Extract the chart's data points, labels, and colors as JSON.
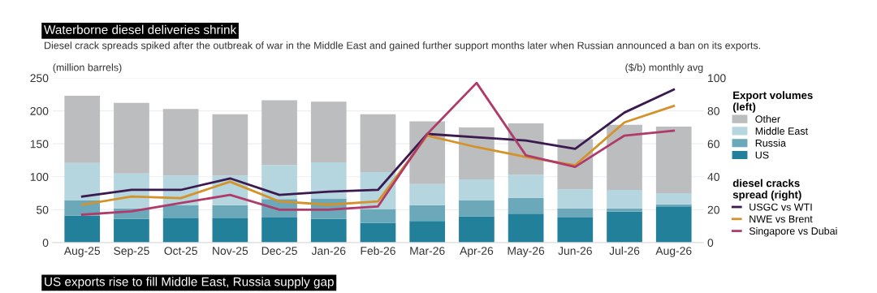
{
  "chart_data": {
    "type": "bar",
    "stacked": true,
    "title": "Waterborne diesel deliveries shrink",
    "subtitle": "Diesel crack spreads spiked after the outbreak of war in the Middle East and gained further support months later when Russian announced a ban on its exports.",
    "ylabel": "(million barrels)",
    "y2label": "($/b) monthly avg",
    "legend_title": "Export volumes\n(left)",
    "categories": [
      "Aug-25",
      "Sep-25",
      "Oct-25",
      "Nov-25",
      "Dec-25",
      "Jan-26",
      "Feb-26",
      "Mar-26",
      "Apr-26",
      "May-26",
      "Jun-26",
      "Jul-26",
      "Aug-26"
    ],
    "series": [
      {
        "name": "US",
        "color": "#23809a",
        "values": [
          41,
          36,
          37,
          37,
          38,
          36,
          30,
          33,
          40,
          44,
          38,
          47,
          55
        ]
      },
      {
        "name": "Russia",
        "color": "#6aa8ba",
        "values": [
          23,
          16,
          20,
          20,
          28,
          31,
          21,
          24,
          24,
          24,
          14,
          5,
          3
        ]
      },
      {
        "name": "Middle East",
        "color": "#b5d6df",
        "values": [
          57,
          53,
          45,
          45,
          52,
          55,
          56,
          32,
          32,
          35,
          29,
          28,
          17
        ]
      },
      {
        "name": "Other",
        "color": "#bcbdbf",
        "values": [
          102,
          107,
          101,
          93,
          98,
          92,
          88,
          95,
          79,
          78,
          76,
          99,
          101
        ]
      },
      {
        "name": "USGC vs WTI",
        "type": "line",
        "axis": "y2",
        "color": "#3b1a4f",
        "values": [
          28,
          32,
          32,
          39,
          29,
          31,
          32,
          66,
          64,
          62,
          57,
          79,
          93
        ]
      },
      {
        "name": "NWE vs Brent",
        "type": "line",
        "axis": "y2",
        "color": "#d4922a",
        "values": [
          23,
          28,
          27,
          37,
          25,
          23,
          25,
          65,
          58,
          52,
          47,
          73,
          83
        ]
      },
      {
        "name": "Singapore vs Dubai",
        "type": "line",
        "axis": "y2",
        "color": "#b03a6a",
        "values": [
          17,
          19,
          24,
          29,
          20,
          20,
          22,
          66,
          97,
          53,
          46,
          65,
          68
        ]
      }
    ],
    "ylim": [
      0,
      250
    ],
    "yticks": [
      0,
      50,
      100,
      150,
      200,
      250
    ],
    "y2lim": [
      0,
      100
    ],
    "y2ticks": [
      0,
      20,
      40,
      60,
      80,
      100
    ],
    "grid": "y",
    "legend": "right",
    "annotations": [
      "diesel cracks\nspread (right)",
      "US exports rise to fill Middle East, Russia supply gap"
    ]
  }
}
